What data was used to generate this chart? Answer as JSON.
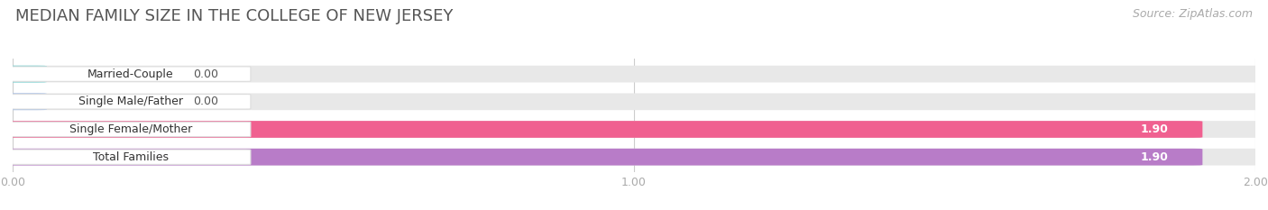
{
  "title": "MEDIAN FAMILY SIZE IN THE COLLEGE OF NEW JERSEY",
  "source": "Source: ZipAtlas.com",
  "categories": [
    "Married-Couple",
    "Single Male/Father",
    "Single Female/Mother",
    "Total Families"
  ],
  "values": [
    0.0,
    0.0,
    1.9,
    1.9
  ],
  "bar_colors": [
    "#5ecece",
    "#9ab8e8",
    "#f06090",
    "#b87cc8"
  ],
  "xlim_max": 2.0,
  "xticks": [
    0.0,
    1.0,
    2.0
  ],
  "xtick_labels": [
    "0.00",
    "1.00",
    "2.00"
  ],
  "background_color": "#ffffff",
  "bar_bg_color": "#e8e8e8",
  "title_fontsize": 13,
  "source_fontsize": 9,
  "tick_fontsize": 9,
  "label_fontsize": 9,
  "value_fontsize": 9,
  "figsize": [
    14.06,
    2.33
  ],
  "dpi": 100
}
